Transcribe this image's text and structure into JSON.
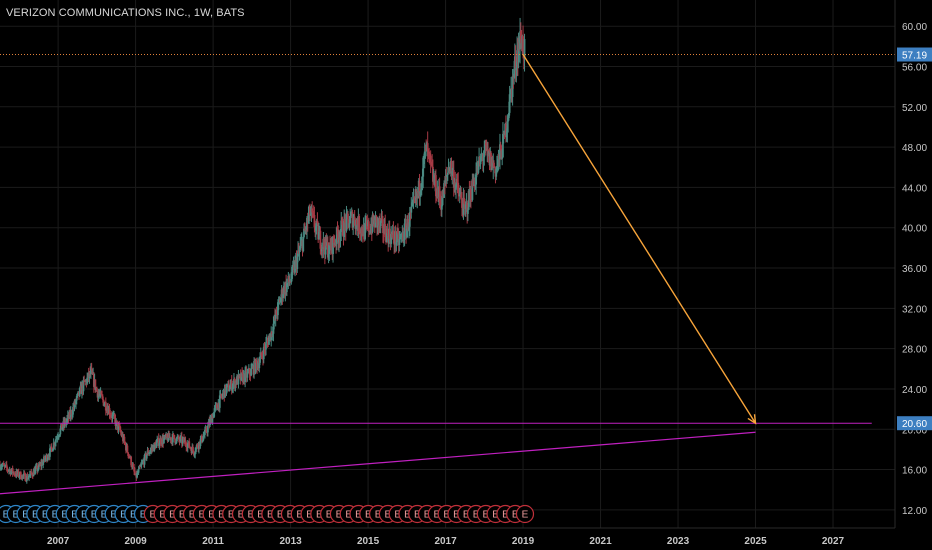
{
  "header": {
    "title": "VERIZON COMMUNICATIONS INC., 1W, BATS"
  },
  "colors": {
    "background": "#000000",
    "up": "#4a8a82",
    "down": "#a63a45",
    "grid": "#1b1b1b",
    "axis_text": "#c8c8c8",
    "last_price_line": "#e0803a",
    "projection_arrow": "#f7a43a",
    "support_line": "#c020c0",
    "price_label_bg": "#3d7fc1",
    "event_up": "#2f86c8",
    "event_down": "#c0303a"
  },
  "chart_data": {
    "type": "candlestick",
    "symbol": "VERIZON COMMUNICATIONS INC.",
    "interval": "1W",
    "exchange": "BATS",
    "x_ticks": [
      "2007",
      "2009",
      "2011",
      "2013",
      "2015",
      "2017",
      "2019",
      "2021",
      "2023",
      "2025",
      "2027"
    ],
    "y_ticks": [
      "12.00",
      "16.00",
      "20.00",
      "24.00",
      "28.00",
      "32.00",
      "36.00",
      "40.00",
      "44.00",
      "48.00",
      "52.00",
      "56.00",
      "60.00"
    ],
    "xlim": [
      2005.5,
      2028.6
    ],
    "ylim": [
      10.2,
      62.6
    ],
    "price_path": [
      {
        "x": 2005.5,
        "y": 16.5
      },
      {
        "x": 2005.9,
        "y": 15.6
      },
      {
        "x": 2006.2,
        "y": 15.2
      },
      {
        "x": 2006.5,
        "y": 16.2
      },
      {
        "x": 2006.8,
        "y": 17.8
      },
      {
        "x": 2007.0,
        "y": 19.6
      },
      {
        "x": 2007.3,
        "y": 21.3
      },
      {
        "x": 2007.6,
        "y": 24.0
      },
      {
        "x": 2007.85,
        "y": 25.6
      },
      {
        "x": 2008.0,
        "y": 23.8
      },
      {
        "x": 2008.3,
        "y": 22.0
      },
      {
        "x": 2008.6,
        "y": 19.8
      },
      {
        "x": 2008.85,
        "y": 17.2
      },
      {
        "x": 2009.0,
        "y": 15.2
      },
      {
        "x": 2009.3,
        "y": 17.6
      },
      {
        "x": 2009.6,
        "y": 18.8
      },
      {
        "x": 2009.9,
        "y": 19.2
      },
      {
        "x": 2010.3,
        "y": 18.7
      },
      {
        "x": 2010.5,
        "y": 17.8
      },
      {
        "x": 2010.8,
        "y": 19.6
      },
      {
        "x": 2011.0,
        "y": 21.5
      },
      {
        "x": 2011.3,
        "y": 23.8
      },
      {
        "x": 2011.6,
        "y": 24.8
      },
      {
        "x": 2011.9,
        "y": 25.4
      },
      {
        "x": 2012.2,
        "y": 26.8
      },
      {
        "x": 2012.5,
        "y": 29.6
      },
      {
        "x": 2012.8,
        "y": 33.8
      },
      {
        "x": 2013.0,
        "y": 34.8
      },
      {
        "x": 2013.3,
        "y": 38.5
      },
      {
        "x": 2013.5,
        "y": 41.5
      },
      {
        "x": 2013.8,
        "y": 38.5
      },
      {
        "x": 2014.0,
        "y": 37.8
      },
      {
        "x": 2014.3,
        "y": 39.8
      },
      {
        "x": 2014.6,
        "y": 41.0
      },
      {
        "x": 2014.9,
        "y": 39.6
      },
      {
        "x": 2015.2,
        "y": 40.6
      },
      {
        "x": 2015.5,
        "y": 39.4
      },
      {
        "x": 2015.8,
        "y": 38.6
      },
      {
        "x": 2016.0,
        "y": 40.0
      },
      {
        "x": 2016.3,
        "y": 43.5
      },
      {
        "x": 2016.5,
        "y": 47.8
      },
      {
        "x": 2016.7,
        "y": 44.5
      },
      {
        "x": 2016.9,
        "y": 42.5
      },
      {
        "x": 2017.1,
        "y": 46.5
      },
      {
        "x": 2017.3,
        "y": 43.8
      },
      {
        "x": 2017.5,
        "y": 41.5
      },
      {
        "x": 2017.8,
        "y": 45.5
      },
      {
        "x": 2018.0,
        "y": 47.5
      },
      {
        "x": 2018.3,
        "y": 45.8
      },
      {
        "x": 2018.5,
        "y": 48.5
      },
      {
        "x": 2018.7,
        "y": 53.8
      },
      {
        "x": 2018.85,
        "y": 57.5
      },
      {
        "x": 2018.95,
        "y": 59.0
      },
      {
        "x": 2019.05,
        "y": 57.19
      }
    ],
    "last_price": 57.19,
    "support_level": 20.6,
    "support_trendline": {
      "from": {
        "x": 2005.5,
        "y": 13.6
      },
      "to": {
        "x": 2025.0,
        "y": 19.7
      }
    },
    "projection_arrow": {
      "from": {
        "x": 2019.0,
        "y": 57.19
      },
      "to": {
        "x": 2025.0,
        "y": 20.6
      }
    },
    "price_labels": [
      "57.19",
      "20.60"
    ],
    "event_markers": {
      "start_x": 2005.5,
      "end_x": 2019.05,
      "count": 54,
      "label": "E",
      "first_blue_count": 15
    }
  }
}
